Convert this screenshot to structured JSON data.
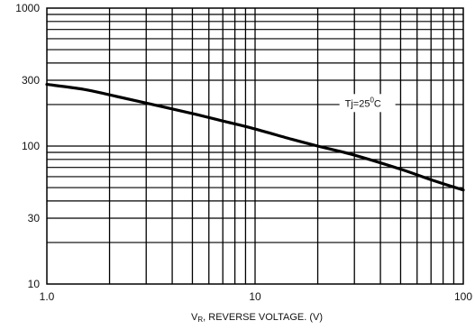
{
  "chart_data": {
    "type": "line",
    "x_scale": "log",
    "y_scale": "log",
    "xlim": [
      1,
      100
    ],
    "ylim": [
      10,
      1000
    ],
    "xlabel": "VR, REVERSE  VOLTAGE. (V)",
    "xlabel_main": "V",
    "xlabel_sub": "R",
    "xlabel_rest": ", REVERSE  VOLTAGE. (V)",
    "ylabel": "",
    "x_ticks": [
      {
        "value": 1,
        "label": "1.0"
      },
      {
        "value": 10,
        "label": "10"
      },
      {
        "value": 100,
        "label": "100"
      }
    ],
    "y_ticks": [
      {
        "value": 10,
        "label": "10"
      },
      {
        "value": 30,
        "label": "30"
      },
      {
        "value": 100,
        "label": "100"
      },
      {
        "value": 300,
        "label": "300"
      },
      {
        "value": 1000,
        "label": "1000"
      }
    ],
    "grid": true,
    "series": [
      {
        "x": [
          1,
          1.5,
          2,
          3,
          5,
          7,
          10,
          15,
          20,
          30,
          50,
          70,
          100
        ],
        "y": [
          280,
          258,
          235,
          205,
          172,
          152,
          133,
          112,
          100,
          86,
          68,
          57,
          48
        ]
      }
    ],
    "annotations": [
      {
        "text_main": "Tj=25",
        "text_sup": "0",
        "text_unit": "C",
        "x": 27,
        "y": 205
      }
    ]
  }
}
